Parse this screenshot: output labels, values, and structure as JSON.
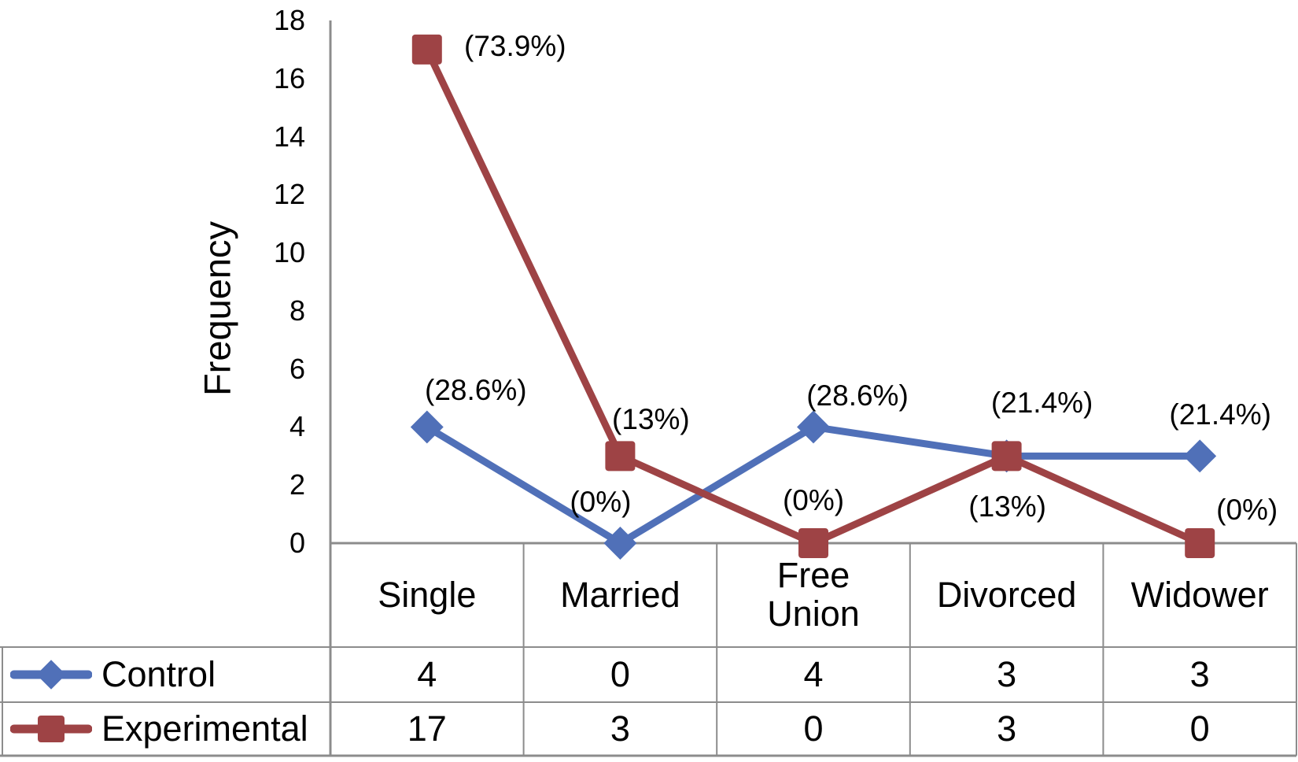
{
  "chart_data": {
    "type": "line",
    "title": "",
    "xlabel": "",
    "ylabel": "Frequency",
    "categories": [
      "Single",
      "Married",
      "Free Union",
      "Divorced",
      "Widower"
    ],
    "y_ticks": [
      0,
      2,
      4,
      6,
      8,
      10,
      12,
      14,
      16,
      18
    ],
    "ylim": [
      0,
      18
    ],
    "grid": false,
    "legend_position": "table-left-column",
    "colors": {
      "control": "#5070B8",
      "experimental": "#9E4345",
      "lines": "#8C8C8C",
      "text": "#000000",
      "background": "#FFFFFF"
    },
    "series": [
      {
        "name": "Control",
        "marker": "diamond",
        "color": "#5070B8",
        "values": [
          4,
          0,
          4,
          3,
          3
        ],
        "point_labels": [
          "(28.6%)",
          "(0%)",
          "(28.6%)",
          "(21.4%)",
          "(21.4%)"
        ]
      },
      {
        "name": "Experimental",
        "marker": "square",
        "color": "#9E4345",
        "values": [
          17,
          3,
          0,
          3,
          0
        ],
        "point_labels": [
          "(73.9%)",
          "(13%)",
          "(0%)",
          "(13%)",
          "(0%)"
        ]
      }
    ]
  }
}
